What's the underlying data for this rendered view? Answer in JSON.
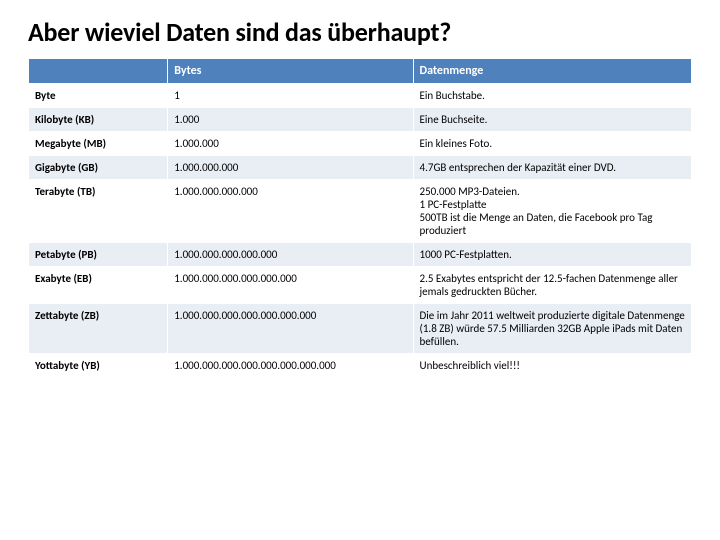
{
  "title": "Aber wieviel Daten sind das überhaupt?",
  "table": {
    "header_color": "#4f81bd",
    "band_color": "#e9edf4",
    "columns": [
      {
        "label": "",
        "width": "21%"
      },
      {
        "label": "Bytes",
        "width": "37%"
      },
      {
        "label": "Datenmenge",
        "width": "42%"
      }
    ],
    "rows": [
      {
        "name": "Byte",
        "bytes": "1",
        "desc": "Ein Buchstabe."
      },
      {
        "name": "Kilobyte (KB)",
        "bytes": "1.000",
        "desc": "Eine Buchseite."
      },
      {
        "name": "Megabyte (MB)",
        "bytes": "1.000.000",
        "desc": "Ein kleines Foto."
      },
      {
        "name": "Gigabyte (GB)",
        "bytes": "1.000.000.000",
        "desc": "4.7GB entsprechen der Kapazität einer DVD."
      },
      {
        "name": "Terabyte (TB)",
        "bytes": "1.000.000.000.000",
        "desc": "250.000 MP3-Dateien.\n1 PC-Festplatte\n500TB ist die Menge an Daten, die Facebook pro Tag produziert"
      },
      {
        "name": "Petabyte (PB)",
        "bytes": "1.000.000.000.000.000",
        "desc": "1000 PC-Festplatten."
      },
      {
        "name": "Exabyte (EB)",
        "bytes": "1.000.000.000.000.000.000",
        "desc": "2.5 Exabytes entspricht der 12.5-fachen Datenmenge aller jemals gedruckten Bücher."
      },
      {
        "name": "Zettabyte (ZB)",
        "bytes": "1.000.000.000.000.000.000.000",
        "desc": "Die im Jahr 2011 weltweit produzierte digitale Datenmenge (1.8 ZB) würde 57.5 Milliarden 32GB Apple iPads mit Daten befüllen."
      },
      {
        "name": "Yottabyte (YB)",
        "bytes": "1.000.000.000.000.000.000.000.000",
        "desc": "Unbeschreiblich viel!!!"
      }
    ]
  }
}
